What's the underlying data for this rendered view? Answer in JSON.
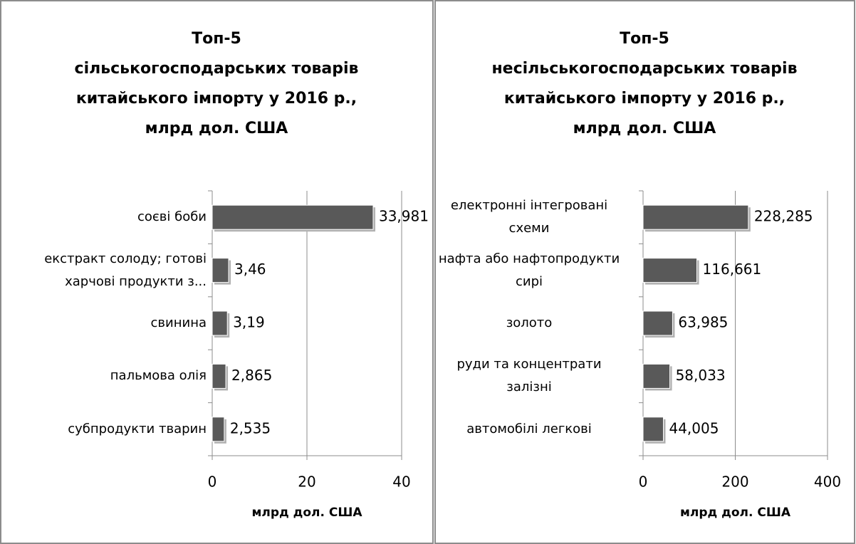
{
  "chart_data": [
    {
      "type": "barh",
      "title": [
        "Топ-5",
        "сільськогосподарських товарів",
        "китайського імпорту у 2016 р.,",
        "млрд дол. США"
      ],
      "categories": [
        "соєві боби",
        "екстракт солоду; готові харчові продукти з...",
        "свинина",
        "пальмова олія",
        "субпродукти тварин"
      ],
      "values": [
        33.981,
        3.46,
        3.19,
        2.865,
        2.535
      ],
      "value_labels": [
        "33,981",
        "3,46",
        "3,19",
        "2,865",
        "2,535"
      ],
      "color": "#595959",
      "xlim": [
        0,
        40
      ],
      "xticks": [
        0,
        20,
        40
      ],
      "xlabel": "млрд дол. США",
      "grid": true
    },
    {
      "type": "barh",
      "title": [
        "Топ-5",
        "несільськогосподарських товарів",
        "китайського імпорту у 2016 р.,",
        "млрд дол. США"
      ],
      "categories": [
        "електронні інтегровані схеми",
        "нафта або нафтопродукти сирі",
        "золото",
        "руди та концентрати залізні",
        "автомобілі легкові"
      ],
      "values": [
        228.285,
        116.661,
        63.985,
        58.033,
        44.005
      ],
      "value_labels": [
        "228,285",
        "116,661",
        "63,985",
        "58,033",
        "44,005"
      ],
      "color": "#595959",
      "xlim": [
        0,
        400
      ],
      "xticks": [
        0,
        200,
        400
      ],
      "xlabel": "млрд дол. США",
      "grid": true
    }
  ]
}
